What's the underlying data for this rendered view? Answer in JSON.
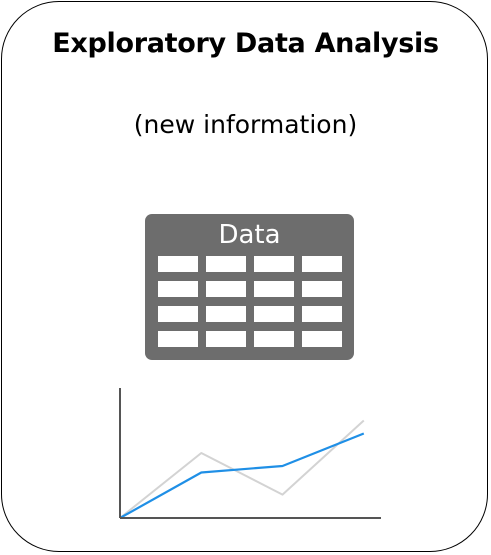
{
  "title": "Exploratory Data Analysis",
  "subtitle": "(new information)",
  "table": {
    "header": "Data",
    "rows": 4,
    "cols": 4,
    "fill_color": "#6d6d6d"
  },
  "chart_data": {
    "type": "line",
    "title": "",
    "xlabel": "",
    "ylabel": "",
    "x": [
      0,
      1,
      2,
      3
    ],
    "xlim": [
      0,
      3.2
    ],
    "ylim": [
      0,
      1
    ],
    "grid": false,
    "series": [
      {
        "values": [
          0,
          0.5,
          0.18,
          0.75
        ],
        "color": "#d3d3d3"
      },
      {
        "values": [
          0,
          0.35,
          0.4,
          0.65
        ],
        "color": "#1f8fe6"
      }
    ]
  }
}
